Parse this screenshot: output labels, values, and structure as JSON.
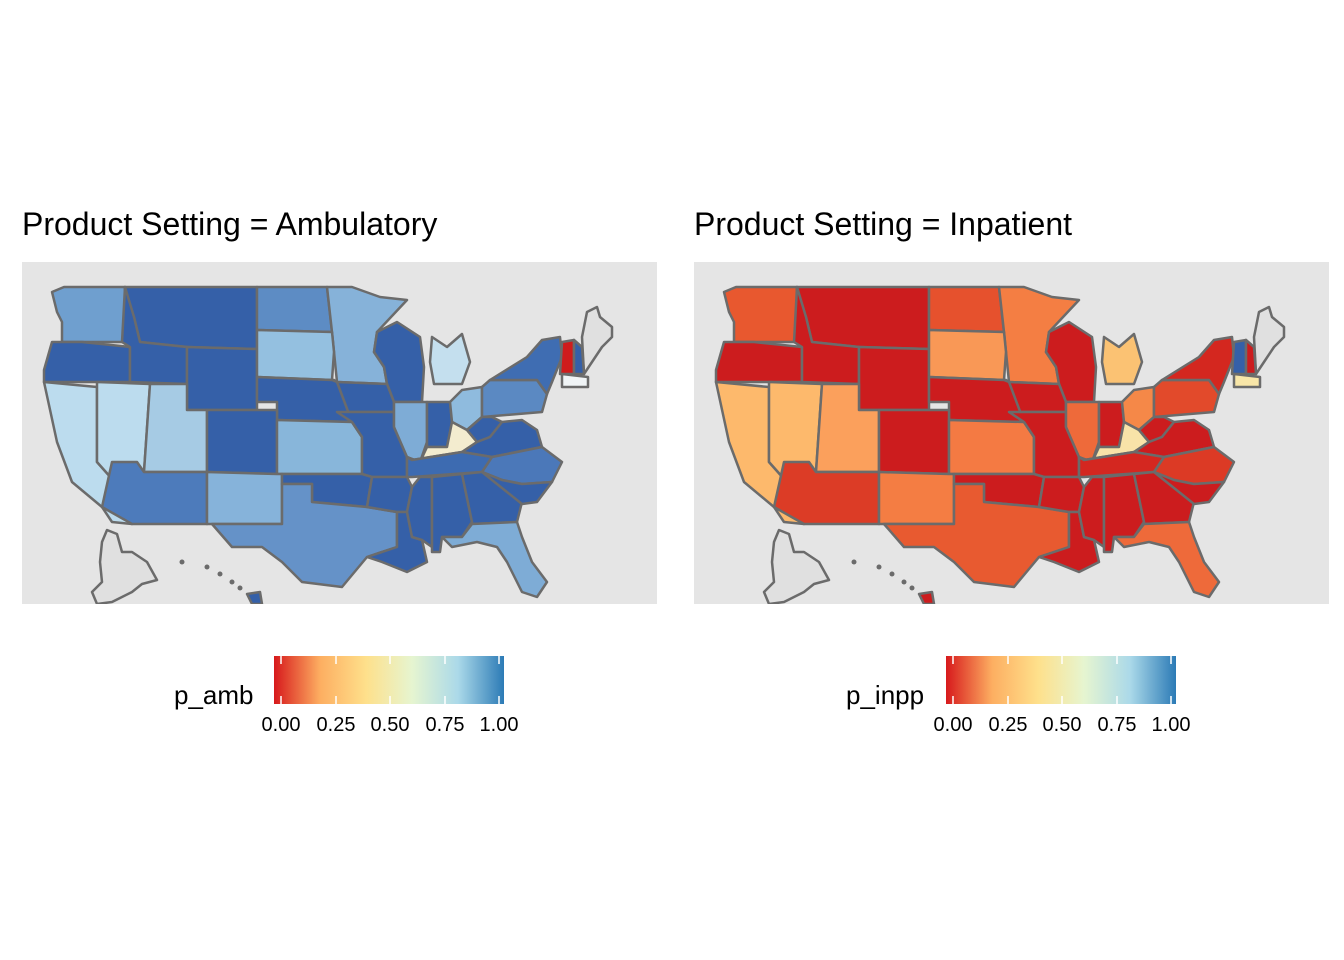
{
  "panels": [
    {
      "title": "Product Setting = Ambulatory",
      "legend_title": "p_amb",
      "legend_ticks": [
        "0.00",
        "0.25",
        "0.50",
        "0.75",
        "1.00"
      ],
      "colors": {
        "west": "#6f9fcf",
        "mont": "#3560a8",
        "dak_n": "#5d8cc4",
        "minn": "#86b2d9",
        "wisc": "#3560a8",
        "mich": "#c4dfee",
        "oreg": "#3560a8",
        "idaho": "#3560a8",
        "wyo": "#3560a8",
        "dak_s": "#94c0e0",
        "iowa": "#3560a8",
        "nebr": "#3560a8",
        "calif": "#bcdcee",
        "nev": "#bcdcee",
        "utah": "#a6cbe4",
        "colo": "#3560a8",
        "kans": "#88b6da",
        "mo": "#3560a8",
        "ill": "#7eacd6",
        "ind": "#3560a8",
        "ohio": "#8fbbde",
        "penn": "#5b89c2",
        "ny": "#3f6db2",
        "ky": "#f3eccf",
        "wva": "#3560a8",
        "va": "#3560a8",
        "ariz": "#4d7bbb",
        "nmex": "#86b3da",
        "okla": "#3560a8",
        "tex": "#6592c8",
        "ark": "#3560a8",
        "tenn": "#3d6bb1",
        "nc": "#4b78b9",
        "la": "#3560a8",
        "miss": "#3560a8",
        "ala": "#3560a8",
        "ga": "#3560a8",
        "sc": "#3560a8",
        "fla": "#7eacd6",
        "vt": "#cf1c1c",
        "nh": "#3560a8",
        "mass": "#f0f4f6",
        "hawaii": "#3560a8"
      }
    },
    {
      "title": "Product Setting = Inpatient",
      "legend_title": "p_inpp",
      "legend_ticks": [
        "0.00",
        "0.25",
        "0.50",
        "0.75",
        "1.00"
      ],
      "colors": {
        "west": "#e8582f",
        "mont": "#cc1c1e",
        "dak_n": "#e6512d",
        "minn": "#f47e43",
        "wisc": "#cc1c1e",
        "mich": "#fbc273",
        "oreg": "#cc1c1e",
        "idaho": "#cc1c1e",
        "wyo": "#cc1c1e",
        "dak_s": "#f99856",
        "iowa": "#cc1c1e",
        "nebr": "#cc1c1e",
        "calif": "#fdb96c",
        "nev": "#fdb96c",
        "utah": "#fba05c",
        "colo": "#cc1c1e",
        "kans": "#f47a43",
        "mo": "#cc1c1e",
        "ill": "#ee6a3a",
        "ind": "#cc1c1e",
        "ohio": "#f58848",
        "penn": "#e24a2b",
        "ny": "#d4271f",
        "ky": "#f8e3a8",
        "wva": "#cc1c1e",
        "va": "#cc1c1e",
        "ariz": "#dc3c26",
        "nmex": "#f47d43",
        "okla": "#cc1c1e",
        "tex": "#e85a30",
        "ark": "#cc1c1e",
        "tenn": "#d42720",
        "nc": "#dc3a25",
        "la": "#cc1c1e",
        "miss": "#cc1c1e",
        "ala": "#cc1c1e",
        "ga": "#cc1c1e",
        "sc": "#cc1c1e",
        "fla": "#ee6a3a",
        "vt": "#3560a8",
        "nh": "#cc1c1e",
        "mass": "#f8e6a8",
        "hawaii": "#cc1c1e"
      }
    }
  ],
  "colorbar_stops": [
    "#d7191c",
    "#fdae61",
    "#fee08b",
    "#e6f5d0",
    "#abd9e9",
    "#2c7bb6"
  ],
  "no_data_color": "#e0e0e0",
  "border_color": "#6b6b6b"
}
